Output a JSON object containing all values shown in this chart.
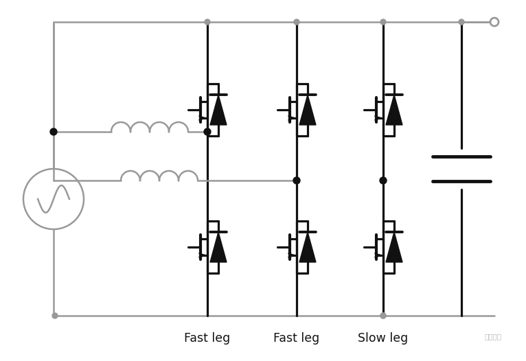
{
  "bg_color": "#ffffff",
  "black": "#111111",
  "gray": "#999999",
  "labels": [
    "Fast leg",
    "Fast leg",
    "Slow leg"
  ],
  "figsize": [
    7.66,
    5.26
  ],
  "dpi": 100,
  "label_fontsize": 12.5
}
